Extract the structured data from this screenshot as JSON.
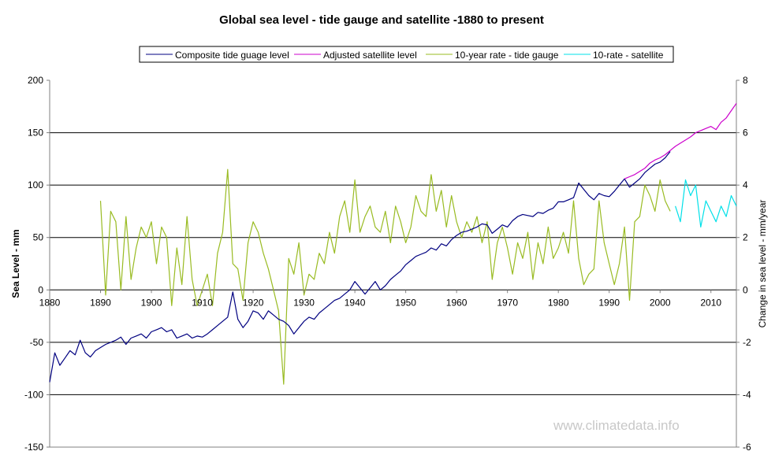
{
  "chart_data": {
    "type": "line",
    "title": "Global sea level - tide gauge and satellite -1880 to present",
    "ylabel": "Sea Level - mm",
    "y2label": "Change in sea level - mm/year",
    "xlim": [
      1880,
      2015
    ],
    "ylim": [
      -150,
      200
    ],
    "y2lim": [
      -6,
      8
    ],
    "x_ticks": [
      1880,
      1890,
      1900,
      1910,
      1920,
      1930,
      1940,
      1950,
      1960,
      1970,
      1980,
      1990,
      2000,
      2010
    ],
    "y_ticks": [
      200,
      150,
      100,
      50,
      0,
      -50,
      -100,
      -150
    ],
    "y2_ticks": [
      8,
      6,
      4,
      2,
      0,
      -2,
      -4,
      -6
    ],
    "grid": "horizontal",
    "watermark": "www.climatedata.info",
    "series": [
      {
        "name": "Composite tide guage level",
        "axis": "left",
        "color": "#000080",
        "x": [
          1880,
          1881,
          1882,
          1883,
          1884,
          1885,
          1886,
          1887,
          1888,
          1889,
          1890,
          1891,
          1892,
          1893,
          1894,
          1895,
          1896,
          1897,
          1898,
          1899,
          1900,
          1901,
          1902,
          1903,
          1904,
          1905,
          1906,
          1907,
          1908,
          1909,
          1910,
          1911,
          1912,
          1913,
          1914,
          1915,
          1916,
          1917,
          1918,
          1919,
          1920,
          1921,
          1922,
          1923,
          1924,
          1925,
          1926,
          1927,
          1928,
          1929,
          1930,
          1931,
          1932,
          1933,
          1934,
          1935,
          1936,
          1937,
          1938,
          1939,
          1940,
          1941,
          1942,
          1943,
          1944,
          1945,
          1946,
          1947,
          1948,
          1949,
          1950,
          1951,
          1952,
          1953,
          1954,
          1955,
          1956,
          1957,
          1958,
          1959,
          1960,
          1961,
          1962,
          1963,
          1964,
          1965,
          1966,
          1967,
          1968,
          1969,
          1970,
          1971,
          1972,
          1973,
          1974,
          1975,
          1976,
          1977,
          1978,
          1979,
          1980,
          1981,
          1982,
          1983,
          1984,
          1985,
          1986,
          1987,
          1988,
          1989,
          1990,
          1991,
          1992,
          1993,
          1994,
          1995,
          1996,
          1997,
          1998,
          1999,
          2000,
          2001,
          2002
        ],
        "values": [
          -88,
          -60,
          -72,
          -65,
          -58,
          -62,
          -48,
          -60,
          -64,
          -58,
          -55,
          -52,
          -50,
          -48,
          -45,
          -52,
          -46,
          -44,
          -42,
          -46,
          -40,
          -38,
          -36,
          -40,
          -38,
          -46,
          -44,
          -42,
          -46,
          -44,
          -45,
          -42,
          -38,
          -34,
          -30,
          -26,
          -2,
          -28,
          -36,
          -30,
          -20,
          -22,
          -28,
          -20,
          -24,
          -28,
          -30,
          -34,
          -42,
          -36,
          -30,
          -26,
          -28,
          -22,
          -18,
          -14,
          -10,
          -8,
          -4,
          0,
          8,
          2,
          -4,
          2,
          8,
          0,
          4,
          10,
          14,
          18,
          24,
          28,
          32,
          34,
          36,
          40,
          38,
          44,
          42,
          48,
          52,
          55,
          56,
          58,
          60,
          63,
          62,
          54,
          58,
          62,
          60,
          66,
          70,
          72,
          71,
          70,
          74,
          73,
          76,
          78,
          84,
          84,
          86,
          88,
          102,
          96,
          90,
          86,
          92,
          90,
          89,
          94,
          100,
          106,
          98,
          102,
          106,
          112,
          116,
          120,
          122,
          126,
          132
        ]
      },
      {
        "name": "Adjusted satellite level",
        "axis": "left",
        "color": "#cc00cc",
        "x": [
          1993,
          1994,
          1995,
          1996,
          1997,
          1998,
          1999,
          2000,
          2001,
          2002,
          2003,
          2004,
          2005,
          2006,
          2007,
          2008,
          2009,
          2010,
          2011,
          2012,
          2013,
          2014,
          2015
        ],
        "values": [
          106,
          108,
          110,
          113,
          116,
          121,
          124,
          126,
          129,
          133,
          137,
          140,
          143,
          146,
          150,
          152,
          154,
          156,
          153,
          160,
          164,
          171,
          178
        ]
      },
      {
        "name": "10-year rate - tide gauge",
        "axis": "right",
        "color": "#99bb22",
        "x": [
          1890,
          1891,
          1892,
          1893,
          1894,
          1895,
          1896,
          1897,
          1898,
          1899,
          1900,
          1901,
          1902,
          1903,
          1904,
          1905,
          1906,
          1907,
          1908,
          1909,
          1910,
          1911,
          1912,
          1913,
          1914,
          1915,
          1916,
          1917,
          1918,
          1919,
          1920,
          1921,
          1922,
          1923,
          1924,
          1925,
          1926,
          1927,
          1928,
          1929,
          1930,
          1931,
          1932,
          1933,
          1934,
          1935,
          1936,
          1937,
          1938,
          1939,
          1940,
          1941,
          1942,
          1943,
          1944,
          1945,
          1946,
          1947,
          1948,
          1949,
          1950,
          1951,
          1952,
          1953,
          1954,
          1955,
          1956,
          1957,
          1958,
          1959,
          1960,
          1961,
          1962,
          1963,
          1964,
          1965,
          1966,
          1967,
          1968,
          1969,
          1970,
          1971,
          1972,
          1973,
          1974,
          1975,
          1976,
          1977,
          1978,
          1979,
          1980,
          1981,
          1982,
          1983,
          1984,
          1985,
          1986,
          1987,
          1988,
          1989,
          1990,
          1991,
          1992,
          1993,
          1994,
          1995,
          1996,
          1997,
          1998,
          1999,
          2000,
          2001,
          2002
        ],
        "values": [
          3.4,
          -0.2,
          3.0,
          2.6,
          0.0,
          2.8,
          0.4,
          1.6,
          2.4,
          2.0,
          2.6,
          1.0,
          2.4,
          2.0,
          -0.6,
          1.6,
          0.2,
          2.8,
          0.4,
          -0.6,
          0.0,
          0.6,
          -0.6,
          1.4,
          2.2,
          4.6,
          1.0,
          0.8,
          -0.4,
          1.8,
          2.6,
          2.2,
          1.4,
          0.8,
          0.0,
          -0.8,
          -3.6,
          1.2,
          0.6,
          1.8,
          -0.2,
          0.6,
          0.4,
          1.4,
          1.0,
          2.2,
          1.4,
          2.8,
          3.4,
          2.2,
          4.2,
          2.2,
          2.8,
          3.2,
          2.4,
          2.2,
          3.0,
          1.8,
          3.2,
          2.6,
          1.8,
          2.4,
          3.6,
          3.0,
          2.8,
          4.4,
          3.0,
          3.8,
          2.4,
          3.6,
          2.6,
          2.0,
          2.6,
          2.2,
          2.8,
          1.8,
          2.6,
          0.4,
          1.8,
          2.4,
          1.6,
          0.6,
          1.8,
          1.2,
          2.2,
          0.4,
          1.8,
          1.0,
          2.4,
          1.2,
          1.6,
          2.2,
          1.4,
          3.4,
          1.2,
          0.2,
          0.6,
          0.8,
          3.4,
          1.8,
          1.0,
          0.2,
          1.0,
          2.4,
          -0.4,
          2.6,
          2.8,
          4.0,
          3.6,
          3.0,
          4.2,
          3.4,
          3.0
        ]
      },
      {
        "name": "10-rate - satellite",
        "axis": "right",
        "color": "#00e0e8",
        "x": [
          2003,
          2004,
          2005,
          2006,
          2007,
          2008,
          2009,
          2010,
          2011,
          2012,
          2013,
          2014,
          2015
        ],
        "values": [
          3.2,
          2.6,
          4.2,
          3.6,
          4.0,
          2.4,
          3.4,
          3.0,
          2.6,
          3.2,
          2.8,
          3.6,
          3.2
        ]
      }
    ]
  }
}
